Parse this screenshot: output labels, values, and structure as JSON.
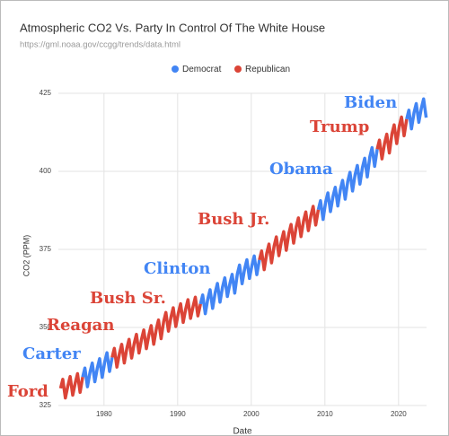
{
  "chart_data": {
    "type": "line",
    "title": "Atmospheric CO2 Vs. Party In Control Of The White House",
    "subtitle": "https://gml.noaa.gov/ccgg/trends/data.html",
    "x_label": "Date",
    "y_label": "CO2 (PPM)",
    "xlim": [
      1973.8,
      2023.8
    ],
    "xticks": [
      1980,
      1990,
      2000,
      2010,
      2020
    ],
    "ylim": [
      325,
      425
    ],
    "yticks": [
      325,
      350,
      375,
      400,
      425
    ],
    "grid": true,
    "legend": "top",
    "x": [
      1974.1,
      1974.4,
      1974.75,
      1975.1,
      1975.4,
      1975.75,
      1976.1,
      1976.4,
      1976.75,
      1977.1,
      1977.4,
      1977.75,
      1978.1,
      1978.4,
      1978.75,
      1979.1,
      1979.4,
      1979.75,
      1980.1,
      1980.4,
      1980.75,
      1981.1,
      1981.4,
      1981.75,
      1982.1,
      1982.4,
      1982.75,
      1983.1,
      1983.4,
      1983.75,
      1984.1,
      1984.4,
      1984.75,
      1985.1,
      1985.4,
      1985.75,
      1986.1,
      1986.4,
      1986.75,
      1987.1,
      1987.4,
      1987.75,
      1988.1,
      1988.4,
      1988.75,
      1989.1,
      1989.4,
      1989.75,
      1990.1,
      1990.4,
      1990.75,
      1991.1,
      1991.4,
      1991.75,
      1992.1,
      1992.4,
      1992.75,
      1993.1,
      1993.4,
      1993.75,
      1994.1,
      1994.4,
      1994.75,
      1995.1,
      1995.4,
      1995.75,
      1996.1,
      1996.4,
      1996.75,
      1997.1,
      1997.4,
      1997.75,
      1998.1,
      1998.4,
      1998.75,
      1999.1,
      1999.4,
      1999.75,
      2000.1,
      2000.4,
      2000.75,
      2001.1,
      2001.4,
      2001.75,
      2002.1,
      2002.4,
      2002.75,
      2003.1,
      2003.4,
      2003.75,
      2004.1,
      2004.4,
      2004.75,
      2005.1,
      2005.4,
      2005.75,
      2006.1,
      2006.4,
      2006.75,
      2007.1,
      2007.4,
      2007.75,
      2008.1,
      2008.4,
      2008.75,
      2009.1,
      2009.4,
      2009.75,
      2010.1,
      2010.4,
      2010.75,
      2011.1,
      2011.4,
      2011.75,
      2012.1,
      2012.4,
      2012.75,
      2013.1,
      2013.4,
      2013.75,
      2014.1,
      2014.4,
      2014.75,
      2015.1,
      2015.4,
      2015.75,
      2016.1,
      2016.4,
      2016.75,
      2017.1,
      2017.4,
      2017.75,
      2018.1,
      2018.4,
      2018.75,
      2019.1,
      2019.4,
      2019.75,
      2020.1,
      2020.4,
      2020.75,
      2021.1,
      2021.4,
      2021.75,
      2022.1,
      2022.4,
      2022.75,
      2023.1,
      2023.4,
      2023.75
    ],
    "series": [
      {
        "name": "Democrat",
        "color": "#4285f4",
        "values": [
          null,
          null,
          null,
          null,
          null,
          null,
          null,
          null,
          null,
          334.1,
          337.0,
          331.0,
          335.7,
          338.6,
          332.6,
          337.1,
          340.0,
          334.0,
          339.0,
          341.9,
          335.9,
          340.4,
          null,
          null,
          null,
          null,
          null,
          null,
          null,
          null,
          null,
          null,
          null,
          null,
          null,
          null,
          null,
          null,
          null,
          null,
          null,
          null,
          null,
          null,
          null,
          null,
          null,
          null,
          null,
          null,
          null,
          null,
          null,
          null,
          null,
          null,
          null,
          357.5,
          360.4,
          354.4,
          359.2,
          362.1,
          356.1,
          361.2,
          364.1,
          358.1,
          363.0,
          365.9,
          359.9,
          364.1,
          367.0,
          361.0,
          367.1,
          370.0,
          364.0,
          368.8,
          371.7,
          365.7,
          370.0,
          372.9,
          366.9,
          371.6,
          null,
          null,
          null,
          null,
          null,
          null,
          null,
          null,
          null,
          null,
          null,
          null,
          null,
          null,
          null,
          null,
          null,
          null,
          null,
          null,
          null,
          null,
          null,
          387.7,
          390.6,
          384.6,
          390.2,
          393.1,
          387.1,
          392.0,
          394.9,
          388.9,
          394.2,
          397.1,
          391.1,
          396.8,
          399.7,
          393.7,
          399.0,
          401.9,
          395.9,
          401.3,
          404.2,
          398.2,
          404.7,
          407.6,
          401.6,
          407.1,
          null,
          null,
          null,
          null,
          null,
          null,
          null,
          null,
          null,
          null,
          null,
          416.7,
          419.6,
          413.6,
          418.8,
          421.7,
          415.7,
          420.3,
          423.2,
          417.2
        ]
      },
      {
        "name": "Republican",
        "color": "#db4437",
        "values": [
          330.5,
          333.4,
          327.4,
          331.4,
          334.3,
          328.3,
          332.3,
          335.2,
          329.2,
          334.1,
          null,
          null,
          null,
          null,
          null,
          null,
          null,
          null,
          null,
          null,
          null,
          340.4,
          343.3,
          337.3,
          341.7,
          344.6,
          338.6,
          343.3,
          346.2,
          340.2,
          344.9,
          347.8,
          341.8,
          346.3,
          349.2,
          343.2,
          347.7,
          350.6,
          344.6,
          349.5,
          352.4,
          346.4,
          351.9,
          354.8,
          348.8,
          353.4,
          356.3,
          350.3,
          354.7,
          357.6,
          351.6,
          356.0,
          358.9,
          352.9,
          356.8,
          359.7,
          353.7,
          357.5,
          null,
          null,
          null,
          null,
          null,
          null,
          null,
          null,
          null,
          null,
          null,
          null,
          null,
          null,
          null,
          null,
          null,
          null,
          null,
          null,
          null,
          null,
          null,
          371.6,
          374.5,
          368.5,
          373.8,
          376.7,
          370.7,
          376.1,
          379.0,
          373.0,
          377.8,
          380.7,
          374.7,
          380.1,
          383.0,
          377.0,
          382.2,
          385.1,
          379.1,
          384.1,
          387.0,
          381.0,
          385.9,
          388.8,
          382.8,
          387.7,
          null,
          null,
          null,
          null,
          null,
          null,
          null,
          null,
          null,
          null,
          null,
          null,
          null,
          null,
          null,
          null,
          null,
          null,
          null,
          null,
          null,
          null,
          null,
          407.1,
          410.0,
          404.0,
          409.0,
          411.9,
          405.9,
          412.0,
          414.9,
          408.9,
          414.5,
          417.4,
          411.4,
          416.7,
          null,
          null,
          null,
          null,
          null,
          null,
          null,
          null
        ]
      }
    ],
    "annotations": [
      {
        "text": "Ford",
        "series": 1
      },
      {
        "text": "Carter",
        "series": 0
      },
      {
        "text": "Reagan",
        "series": 1
      },
      {
        "text": "Bush Sr.",
        "series": 1
      },
      {
        "text": "Clinton",
        "series": 0
      },
      {
        "text": "Bush Jr.",
        "series": 1
      },
      {
        "text": "Obama",
        "series": 0
      },
      {
        "text": "Trump",
        "series": 1
      },
      {
        "text": "Biden",
        "series": 0
      }
    ]
  }
}
